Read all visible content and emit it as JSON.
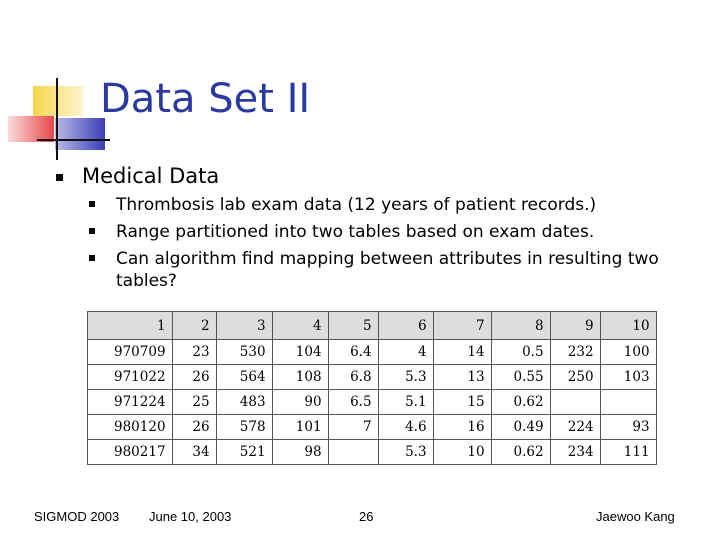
{
  "slide": {
    "title": "Data Set II",
    "bullet1": "Medical Data",
    "sub_bullets": [
      "Thrombosis lab exam data (12 years of patient records.)",
      "Range partitioned into two tables based on exam dates.",
      "Can algorithm find mapping between attributes in resulting two tables?"
    ]
  },
  "table": {
    "header": [
      "1",
      "2",
      "3",
      "4",
      "5",
      "6",
      "7",
      "8",
      "9",
      "10"
    ],
    "rows": [
      [
        "970709",
        "23",
        "530",
        "104",
        "6.4",
        "4",
        "14",
        "0.5",
        "232",
        "100"
      ],
      [
        "971022",
        "26",
        "564",
        "108",
        "6.8",
        "5.3",
        "13",
        "0.55",
        "250",
        "103"
      ],
      [
        "971224",
        "25",
        "483",
        "90",
        "6.5",
        "5.1",
        "15",
        "0.62",
        "",
        ""
      ],
      [
        "980120",
        "26",
        "578",
        "101",
        "7",
        "4.6",
        "16",
        "0.49",
        "224",
        "93"
      ],
      [
        "980217",
        "34",
        "521",
        "98",
        "",
        "5.3",
        "10",
        "0.62",
        "234",
        "111"
      ]
    ]
  },
  "footer": {
    "conference": "SIGMOD 2003",
    "date": "June 10, 2003",
    "page": "26",
    "author": "Jaewoo Kang"
  },
  "colors": {
    "title": "#2b3a9e",
    "logo_yellow": "#f6d64a",
    "logo_blue": "#3a3fb8",
    "logo_red": "#e8474a"
  }
}
